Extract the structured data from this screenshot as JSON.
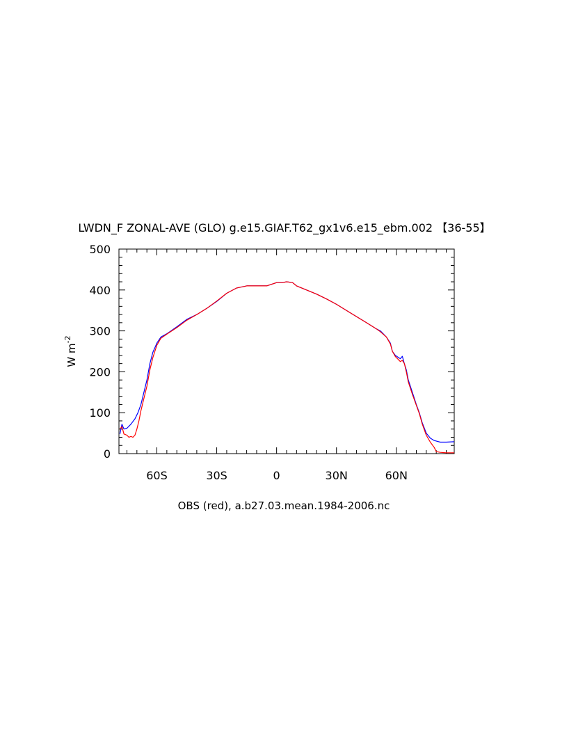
{
  "chart_data": {
    "type": "line",
    "title": "LWDN_F ZONAL-AVE (GLO) g.e15.GIAF.T62_gx1v6.e15_ebm.002 【36-55】",
    "xlabel": "OBS (red), a.b27.03.mean.1984-2006.nc",
    "ylabel": "W m",
    "ylabel_superscript": "-2",
    "xlim": [
      -79,
      89
    ],
    "ylim": [
      0,
      500
    ],
    "yticks": [
      0,
      100,
      200,
      300,
      400,
      500
    ],
    "ytick_labels": [
      "0",
      "100",
      "200",
      "300",
      "400",
      "500"
    ],
    "xticks": [
      -60,
      -30,
      0,
      30,
      60
    ],
    "xtick_labels": [
      "60S",
      "30S",
      "0",
      "30N",
      "60N"
    ],
    "x_minor_step": 5,
    "y_minor_step": 20,
    "grid": false,
    "legend": "none",
    "series": [
      {
        "color": "#0000ff",
        "x": [
          -78.5,
          -77.5,
          -76.5,
          -75,
          -73,
          -71,
          -69.5,
          -68,
          -66.5,
          -65,
          -63.5,
          -62,
          -60,
          -58,
          -55,
          -50,
          -45,
          -40,
          -35,
          -30,
          -25,
          -20,
          -15,
          -10,
          -5,
          0,
          3,
          5,
          8,
          10,
          15,
          20,
          25,
          30,
          35,
          40,
          45,
          50,
          52,
          55,
          57,
          58,
          59.5,
          61,
          62,
          63,
          64,
          65,
          66,
          68,
          70,
          71.5,
          73,
          75,
          77,
          79,
          82,
          85,
          89
        ],
        "y": [
          48,
          72,
          60,
          62,
          72,
          85,
          100,
          120,
          150,
          180,
          220,
          248,
          270,
          285,
          293,
          310,
          328,
          340,
          355,
          372,
          392,
          405,
          410,
          410,
          410,
          418,
          418,
          420,
          418,
          410,
          400,
          390,
          378,
          365,
          350,
          335,
          320,
          305,
          300,
          285,
          270,
          250,
          240,
          235,
          232,
          238,
          220,
          205,
          180,
          150,
          120,
          100,
          75,
          50,
          38,
          32,
          28,
          28,
          29
        ]
      },
      {
        "color": "#ff0000",
        "x": [
          -78.5,
          -77.5,
          -76.5,
          -75,
          -74,
          -73,
          -72,
          -71,
          -70,
          -69,
          -68,
          -66.5,
          -65,
          -63.5,
          -62,
          -60,
          -58,
          -55,
          -50,
          -45,
          -40,
          -35,
          -30,
          -25,
          -20,
          -15,
          -10,
          -5,
          0,
          3,
          5,
          8,
          10,
          15,
          20,
          25,
          30,
          35,
          40,
          45,
          50,
          52,
          55,
          57,
          58,
          59.5,
          61,
          62,
          63,
          64,
          65,
          66,
          68,
          70,
          71.5,
          73,
          75,
          77,
          79,
          80,
          82,
          85,
          89
        ],
        "y": [
          60,
          66,
          48,
          45,
          40,
          42,
          40,
          45,
          60,
          80,
          105,
          135,
          165,
          205,
          235,
          265,
          282,
          292,
          308,
          326,
          340,
          355,
          373,
          392,
          405,
          410,
          410,
          410,
          418,
          418,
          420,
          418,
          410,
          400,
          390,
          378,
          365,
          350,
          335,
          320,
          305,
          298,
          285,
          268,
          250,
          237,
          230,
          225,
          228,
          220,
          200,
          175,
          145,
          118,
          98,
          72,
          45,
          28,
          15,
          5,
          3,
          2,
          2
        ]
      }
    ]
  }
}
